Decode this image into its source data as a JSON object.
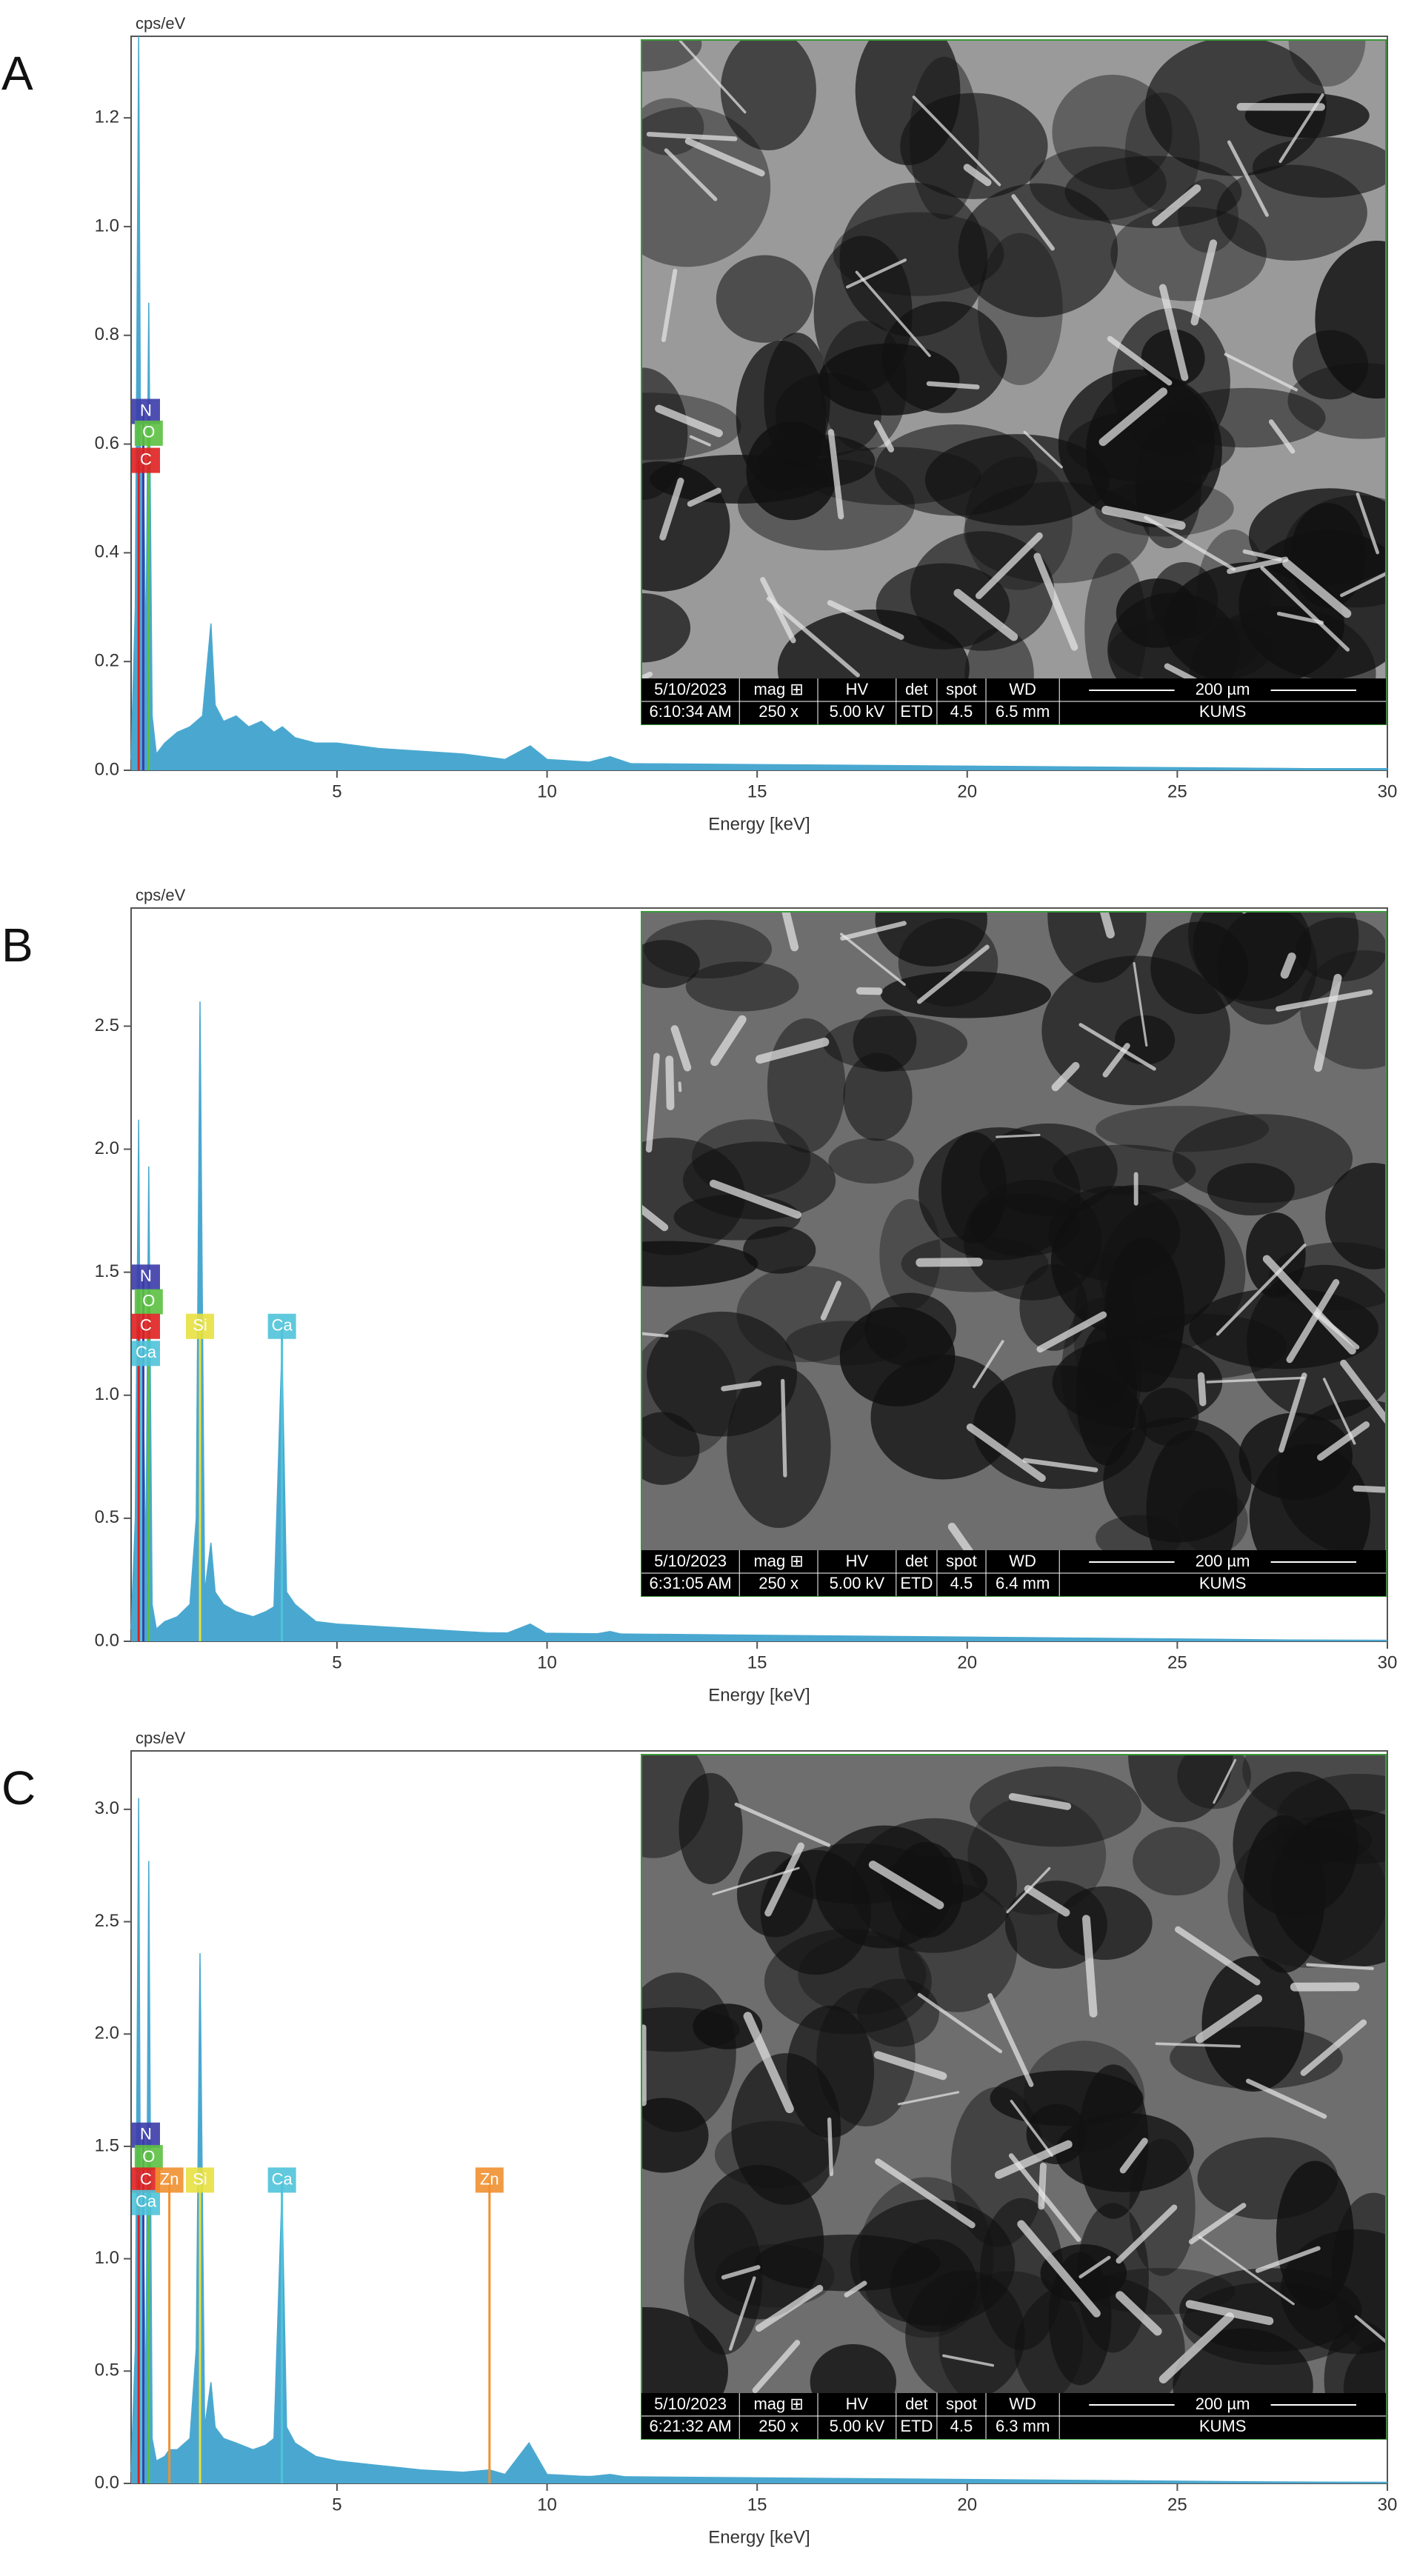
{
  "chart_data": [
    {
      "type": "area",
      "label": "A",
      "ylabel": "cps/eV",
      "xlabel": "Energy [keV]",
      "color": "#4aa8d0",
      "xlim": [
        0.1,
        30
      ],
      "xticks": [
        5,
        10,
        15,
        20,
        25,
        30
      ],
      "ylim": [
        0,
        1.35
      ],
      "yticks": [
        {
          "value": 0,
          "label": "0.0"
        },
        0.2,
        0.4,
        0.6,
        0.8,
        {
          "value": 1,
          "label": "1.0"
        },
        1.2
      ],
      "x": [
        0.1,
        0.2,
        0.28,
        0.33,
        0.39,
        0.45,
        0.52,
        0.6,
        0.7,
        0.9,
        1.2,
        1.5,
        1.8,
        2.0,
        2.1,
        2.3,
        2.6,
        2.9,
        3.2,
        3.5,
        3.7,
        4.0,
        4.5,
        5,
        6,
        7,
        8,
        9,
        9.6,
        10,
        11,
        11.5,
        12,
        14,
        16,
        18,
        20,
        22,
        25,
        28,
        30
      ],
      "values": [
        0.02,
        0.3,
        1.35,
        0.5,
        0.6,
        0.2,
        0.86,
        0.1,
        0.03,
        0.05,
        0.07,
        0.08,
        0.1,
        0.27,
        0.12,
        0.09,
        0.1,
        0.08,
        0.09,
        0.07,
        0.08,
        0.06,
        0.05,
        0.05,
        0.04,
        0.035,
        0.03,
        0.02,
        0.045,
        0.02,
        0.015,
        0.025,
        0.012,
        0.01,
        0.008,
        0.007,
        0.006,
        0.005,
        0.004,
        0.003,
        0.003
      ],
      "markers": [
        {
          "label": "N",
          "energy": 0.39,
          "height": 0.66,
          "color": "#3c3ca8"
        },
        {
          "label": "O",
          "energy": 0.52,
          "height": 0.62,
          "color": "#5cc040"
        },
        {
          "label": "C",
          "energy": 0.28,
          "height": 0.57,
          "color": "#e02020"
        }
      ],
      "inset": {
        "header": [
          "5/10/2023",
          "mag ⊞",
          "HV",
          "det",
          "spot",
          "WD",
          "200 µm"
        ],
        "values": [
          "6:10:34 AM",
          "250 x",
          "5.00 kV",
          "ETD",
          "4.5",
          "6.5 mm",
          "KUMS"
        ]
      }
    },
    {
      "type": "area",
      "label": "B",
      "ylabel": "cps/eV",
      "xlabel": "Energy [keV]",
      "color": "#4aa8d0",
      "xlim": [
        0.1,
        30
      ],
      "xticks": [
        5,
        10,
        15,
        20,
        25,
        30
      ],
      "ylim": [
        0,
        2.98
      ],
      "yticks": [
        {
          "value": 0,
          "label": "0.0"
        },
        0.5,
        {
          "value": 1,
          "label": "1.0"
        },
        1.5,
        {
          "value": 2,
          "label": "2.0"
        },
        2.5
      ],
      "x": [
        0.1,
        0.2,
        0.28,
        0.33,
        0.39,
        0.45,
        0.52,
        0.6,
        0.7,
        0.9,
        1.2,
        1.5,
        1.65,
        1.74,
        1.85,
        2.0,
        2.1,
        2.3,
        2.6,
        3.0,
        3.3,
        3.5,
        3.69,
        3.8,
        4.0,
        4.5,
        5,
        6,
        7,
        8,
        9,
        9.6,
        10,
        11,
        11.5,
        12,
        14,
        16,
        18,
        20,
        22,
        25,
        28,
        30
      ],
      "values": [
        0.05,
        0.5,
        2.12,
        0.6,
        1.0,
        0.3,
        1.93,
        0.15,
        0.05,
        0.08,
        0.1,
        0.15,
        0.5,
        2.6,
        0.2,
        0.4,
        0.2,
        0.15,
        0.12,
        0.1,
        0.12,
        0.14,
        1.2,
        0.2,
        0.15,
        0.08,
        0.07,
        0.06,
        0.05,
        0.04,
        0.03,
        0.07,
        0.03,
        0.025,
        0.04,
        0.02,
        0.015,
        0.012,
        0.01,
        0.008,
        0.007,
        0.006,
        0.005,
        0.004
      ],
      "markers": [
        {
          "label": "N",
          "energy": 0.39,
          "height": 1.48,
          "color": "#3c3ca8"
        },
        {
          "label": "O",
          "energy": 0.52,
          "height": 1.38,
          "color": "#5cc040"
        },
        {
          "label": "C",
          "energy": 0.28,
          "height": 1.28,
          "color": "#e02020"
        },
        {
          "label": "Ca",
          "energy": 0.34,
          "height": 1.17,
          "color": "#4fc3d9"
        },
        {
          "label": "Si",
          "energy": 1.74,
          "height": 1.28,
          "color": "#e8e040"
        },
        {
          "label": "Ca",
          "energy": 3.69,
          "height": 1.28,
          "color": "#4fc3d9"
        }
      ],
      "inset": {
        "header": [
          "5/10/2023",
          "mag ⊞",
          "HV",
          "det",
          "spot",
          "WD",
          "200 µm"
        ],
        "values": [
          "6:31:05 AM",
          "250 x",
          "5.00 kV",
          "ETD",
          "4.5",
          "6.4 mm",
          "KUMS"
        ]
      }
    },
    {
      "type": "area",
      "label": "C",
      "ylabel": "cps/eV",
      "xlabel": "Energy [keV]",
      "color": "#4aa8d0",
      "xlim": [
        0.1,
        30
      ],
      "xticks": [
        5,
        10,
        15,
        20,
        25,
        30
      ],
      "ylim": [
        0,
        3.26
      ],
      "yticks": [
        {
          "value": 0,
          "label": "0.0"
        },
        0.5,
        {
          "value": 1,
          "label": "1.0"
        },
        1.5,
        {
          "value": 2,
          "label": "2.0"
        },
        2.5,
        {
          "value": 3,
          "label": "3.0"
        }
      ],
      "x": [
        0.1,
        0.2,
        0.28,
        0.33,
        0.39,
        0.45,
        0.52,
        0.6,
        0.7,
        0.9,
        1.01,
        1.2,
        1.5,
        1.65,
        1.74,
        1.85,
        2.0,
        2.1,
        2.3,
        2.6,
        3.0,
        3.3,
        3.5,
        3.69,
        3.8,
        4.0,
        4.5,
        5,
        6,
        7,
        8,
        8.63,
        9,
        9.57,
        10,
        11,
        11.5,
        12,
        14,
        16,
        18,
        20,
        22,
        25,
        28,
        30
      ],
      "values": [
        0.05,
        0.6,
        3.05,
        0.8,
        1.2,
        0.3,
        2.77,
        0.2,
        0.1,
        0.12,
        0.15,
        0.15,
        0.2,
        0.6,
        2.36,
        0.25,
        0.45,
        0.25,
        0.2,
        0.18,
        0.15,
        0.17,
        0.2,
        1.3,
        0.25,
        0.18,
        0.12,
        0.1,
        0.08,
        0.06,
        0.05,
        0.06,
        0.04,
        0.18,
        0.04,
        0.03,
        0.04,
        0.025,
        0.02,
        0.015,
        0.012,
        0.01,
        0.008,
        0.007,
        0.006,
        0.005
      ],
      "markers": [
        {
          "label": "N",
          "energy": 0.39,
          "height": 1.55,
          "color": "#3c3ca8"
        },
        {
          "label": "O",
          "energy": 0.52,
          "height": 1.45,
          "color": "#5cc040"
        },
        {
          "label": "C",
          "energy": 0.28,
          "height": 1.35,
          "color": "#e02020"
        },
        {
          "label": "Ca",
          "energy": 0.34,
          "height": 1.25,
          "color": "#4fc3d9"
        },
        {
          "label": "Zn",
          "energy": 1.01,
          "height": 1.35,
          "color": "#f09030"
        },
        {
          "label": "Si",
          "energy": 1.74,
          "height": 1.35,
          "color": "#e8e040"
        },
        {
          "label": "Ca",
          "energy": 3.69,
          "height": 1.35,
          "color": "#4fc3d9"
        },
        {
          "label": "Zn",
          "energy": 8.63,
          "height": 1.35,
          "color": "#f09030"
        }
      ],
      "inset": {
        "header": [
          "5/10/2023",
          "mag ⊞",
          "HV",
          "det",
          "spot",
          "WD",
          "200 µm"
        ],
        "values": [
          "6:21:32 AM",
          "250 x",
          "5.00 kV",
          "ETD",
          "4.5",
          "6.3 mm",
          "KUMS"
        ]
      }
    }
  ]
}
